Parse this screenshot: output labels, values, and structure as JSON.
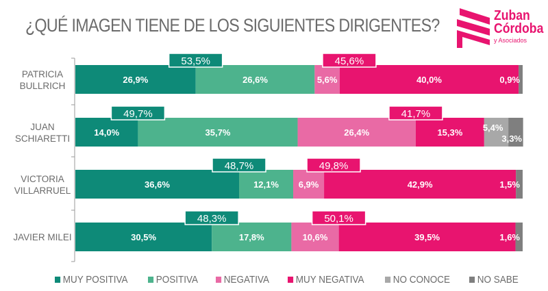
{
  "header": {
    "title": "¿QUÉ IMAGEN TIENE DE LOS SIGUIENTES DIRIGENTES?"
  },
  "logo": {
    "line1": "Zuban",
    "line2": "Córdoba",
    "line3": "y Asociados",
    "color": "#e8146f"
  },
  "chart_data": {
    "type": "bar",
    "orientation": "horizontal",
    "stacked": true,
    "title": "¿QUÉ IMAGEN TIENE DE LOS SIGUIENTES DIRIGENTES?",
    "xlabel": "",
    "ylabel": "",
    "xlim": [
      0,
      100
    ],
    "grid": false,
    "legend_position": "bottom",
    "categories": [
      [
        "PATRICIA",
        "BULLRICH"
      ],
      [
        "JUAN",
        "SCHIARETTI"
      ],
      [
        "VICTORIA",
        "VILLARRUEL"
      ],
      [
        "JAVIER MILEI"
      ]
    ],
    "series": [
      {
        "name": "MUY POSITIVA",
        "color": "#0e8a78",
        "values": [
          26.9,
          14.0,
          36.6,
          30.5
        ],
        "labels": [
          "26,9%",
          "14,0%",
          "36,6%",
          "30,5%"
        ]
      },
      {
        "name": "POSITIVA",
        "color": "#4db38d",
        "values": [
          26.6,
          35.7,
          12.1,
          17.8
        ],
        "labels": [
          "26,6%",
          "35,7%",
          "12,1%",
          "17,8%"
        ]
      },
      {
        "name": "NEGATIVA",
        "color": "#e96aa5",
        "values": [
          5.6,
          26.4,
          6.9,
          10.6
        ],
        "labels": [
          "5,6%",
          "26,4%",
          "6,9%",
          "10,6%"
        ]
      },
      {
        "name": "MUY NEGATIVA",
        "color": "#e8146f",
        "values": [
          40.0,
          15.3,
          42.9,
          39.5
        ],
        "labels": [
          "40,0%",
          "15,3%",
          "42,9%",
          "39,5%"
        ]
      },
      {
        "name": "NO CONOCE",
        "color": "#a8a8a8",
        "values": [
          0,
          5.4,
          0,
          0
        ],
        "labels": [
          "",
          "5,4%",
          "",
          ""
        ]
      },
      {
        "name": "NO SABE",
        "color": "#7f7f7f",
        "values": [
          0.9,
          3.3,
          1.5,
          1.6
        ],
        "labels": [
          "0,9%",
          "3,3%",
          "1,5%",
          "1,6%"
        ]
      }
    ],
    "totals": {
      "positive": {
        "color": "#0e8a78",
        "values": [
          53.5,
          49.7,
          48.7,
          48.3
        ],
        "labels": [
          "53,5%",
          "49,7%",
          "48,7%",
          "48,3%"
        ]
      },
      "negative": {
        "color": "#e8146f",
        "values": [
          45.6,
          41.7,
          49.8,
          50.1
        ],
        "labels": [
          "45,6%",
          "41,7%",
          "49,8%",
          "50,1%"
        ]
      }
    }
  }
}
